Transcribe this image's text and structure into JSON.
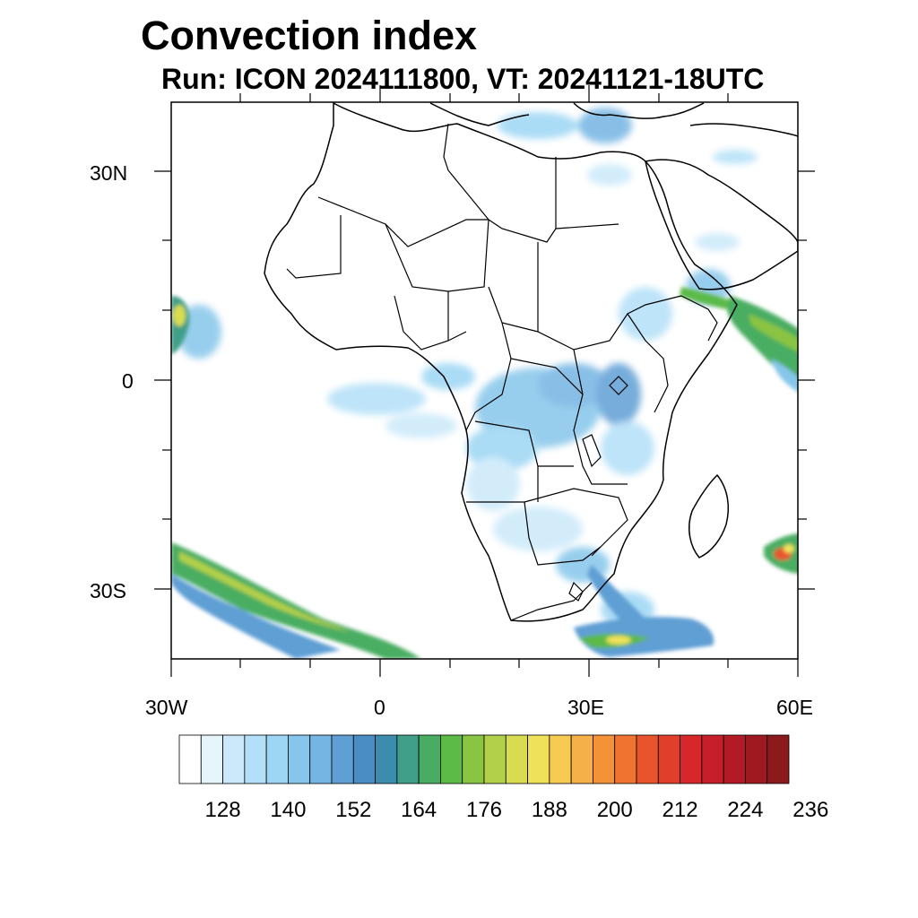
{
  "title": "Convection index",
  "subtitle": "Run: ICON 2024111800,  VT: 20241121-18UTC",
  "map": {
    "lon_range": [
      -30,
      60
    ],
    "lat_range": [
      -40,
      40
    ],
    "lat_tick_labels": [
      "30N",
      "0",
      "30S"
    ],
    "lon_tick_labels": [
      "30W",
      "0",
      "30E",
      "60E"
    ],
    "field": "convection index",
    "coastline_color": "#000000"
  },
  "colorbar": {
    "tick_labels": [
      "128",
      "140",
      "152",
      "164",
      "176",
      "188",
      "200",
      "212",
      "224",
      "236"
    ],
    "colors": [
      "#ffffff",
      "#e6f4fc",
      "#cbe9f9",
      "#b3e0f8",
      "#9cd6f4",
      "#86c6ea",
      "#74b5e3",
      "#5f9fd4",
      "#4a8cc4",
      "#3c8cae",
      "#409f88",
      "#48ad62",
      "#5cba47",
      "#8ac443",
      "#b2d04a",
      "#d9dc50",
      "#efe25a",
      "#f7ca54",
      "#f6b04a",
      "#f49238",
      "#ee7430",
      "#e8552d",
      "#e03f2b",
      "#d6282b",
      "#c61f2a",
      "#b21b25",
      "#9e1a20",
      "#8a1a1c"
    ]
  }
}
